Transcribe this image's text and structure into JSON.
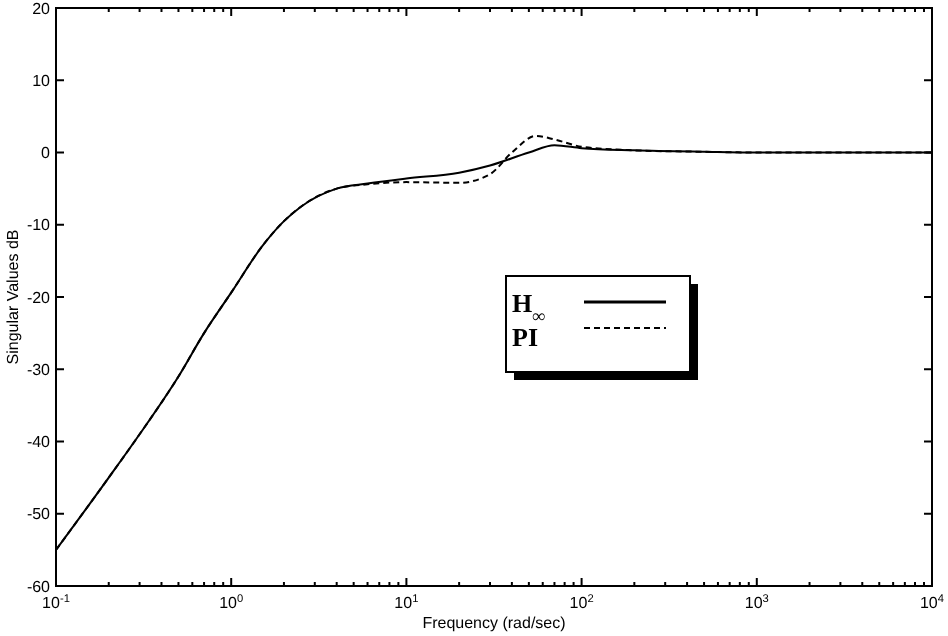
{
  "chart_data": {
    "type": "line",
    "xlabel": "Frequency (rad/sec)",
    "ylabel": "Singular Values dB",
    "log": "x",
    "xlim": [
      0.1,
      10000
    ],
    "ylim": [
      -60,
      20
    ],
    "xticks": [
      {
        "value": 0.1,
        "label": "10$^{-1}$"
      },
      {
        "value": 1,
        "label": "10$^{0}$"
      },
      {
        "value": 10,
        "label": "10$^{1}$"
      },
      {
        "value": 100,
        "label": "10$^{2}$"
      },
      {
        "value": 1000,
        "label": "10$^{3}$"
      },
      {
        "value": 10000,
        "label": "10$^{4}$"
      }
    ],
    "yticks": [
      -60,
      -50,
      -40,
      -30,
      -20,
      -10,
      0,
      10,
      20
    ],
    "grid": false,
    "legend": "center",
    "series": [
      {
        "name": "H$_{∞}$",
        "color": "#000000",
        "line_style": "solid",
        "x": [
          0.1,
          0.2,
          0.3,
          0.5,
          0.7,
          1,
          1.5,
          2,
          2.5,
          4,
          6,
          10,
          20,
          30,
          50,
          70,
          100,
          200,
          500,
          1000,
          10000
        ],
        "values": [
          -55,
          -45,
          -39,
          -31,
          -25,
          -19.4,
          -13,
          -9.5,
          -7.5,
          -5,
          -4.3,
          -3.6,
          -2.8,
          -1.8,
          0,
          1,
          0.6,
          0.3,
          0.1,
          0,
          0
        ]
      },
      {
        "name": "PI",
        "color": "#000000",
        "line_style": "dashed",
        "x": [
          0.1,
          0.2,
          0.3,
          0.5,
          0.7,
          1,
          1.5,
          2,
          2.5,
          4,
          6,
          10,
          20,
          30,
          40,
          55,
          70,
          100,
          200,
          500,
          1000,
          10000
        ],
        "values": [
          -55,
          -45,
          -39,
          -31,
          -25,
          -19.4,
          -13,
          -9.5,
          -7.5,
          -5,
          -4.4,
          -4.1,
          -4.2,
          -3,
          0,
          2.3,
          1.8,
          0.8,
          0.3,
          0.1,
          0,
          0
        ]
      }
    ]
  }
}
